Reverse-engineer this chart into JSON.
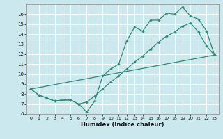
{
  "xlabel": "Humidex (Indice chaleur)",
  "bg_color": "#cce8ef",
  "grid_color": "#ffffff",
  "line_color": "#2e8b72",
  "xlim": [
    -0.5,
    23.5
  ],
  "ylim": [
    6,
    17
  ],
  "xticks": [
    0,
    1,
    2,
    3,
    4,
    5,
    6,
    7,
    8,
    9,
    10,
    11,
    12,
    13,
    14,
    15,
    16,
    17,
    18,
    19,
    20,
    21,
    22,
    23
  ],
  "yticks": [
    6,
    7,
    8,
    9,
    10,
    11,
    12,
    13,
    14,
    15,
    16
  ],
  "line1_x": [
    0,
    1,
    2,
    3,
    4,
    5,
    6,
    7,
    8,
    9,
    10,
    11,
    12,
    13,
    14,
    15,
    16,
    17,
    18,
    19,
    20,
    21,
    22,
    23
  ],
  "line1_y": [
    8.5,
    7.9,
    7.6,
    7.3,
    7.4,
    7.4,
    7.0,
    6.2,
    7.3,
    9.8,
    10.5,
    11.0,
    13.3,
    14.7,
    14.3,
    15.4,
    15.4,
    16.1,
    16.0,
    16.7,
    15.8,
    15.5,
    14.3,
    11.9
  ],
  "line2_x": [
    0,
    1,
    2,
    3,
    4,
    5,
    6,
    7,
    8,
    9,
    10,
    11,
    12,
    13,
    14,
    15,
    16,
    17,
    18,
    19,
    20,
    21,
    22,
    23
  ],
  "line2_y": [
    8.5,
    7.9,
    7.6,
    7.3,
    7.4,
    7.4,
    7.0,
    7.2,
    7.8,
    8.5,
    9.2,
    9.8,
    10.5,
    11.2,
    11.8,
    12.5,
    13.2,
    13.8,
    14.2,
    14.8,
    15.1,
    14.2,
    12.8,
    11.9
  ],
  "line3_x": [
    0,
    23
  ],
  "line3_y": [
    8.5,
    11.9
  ]
}
